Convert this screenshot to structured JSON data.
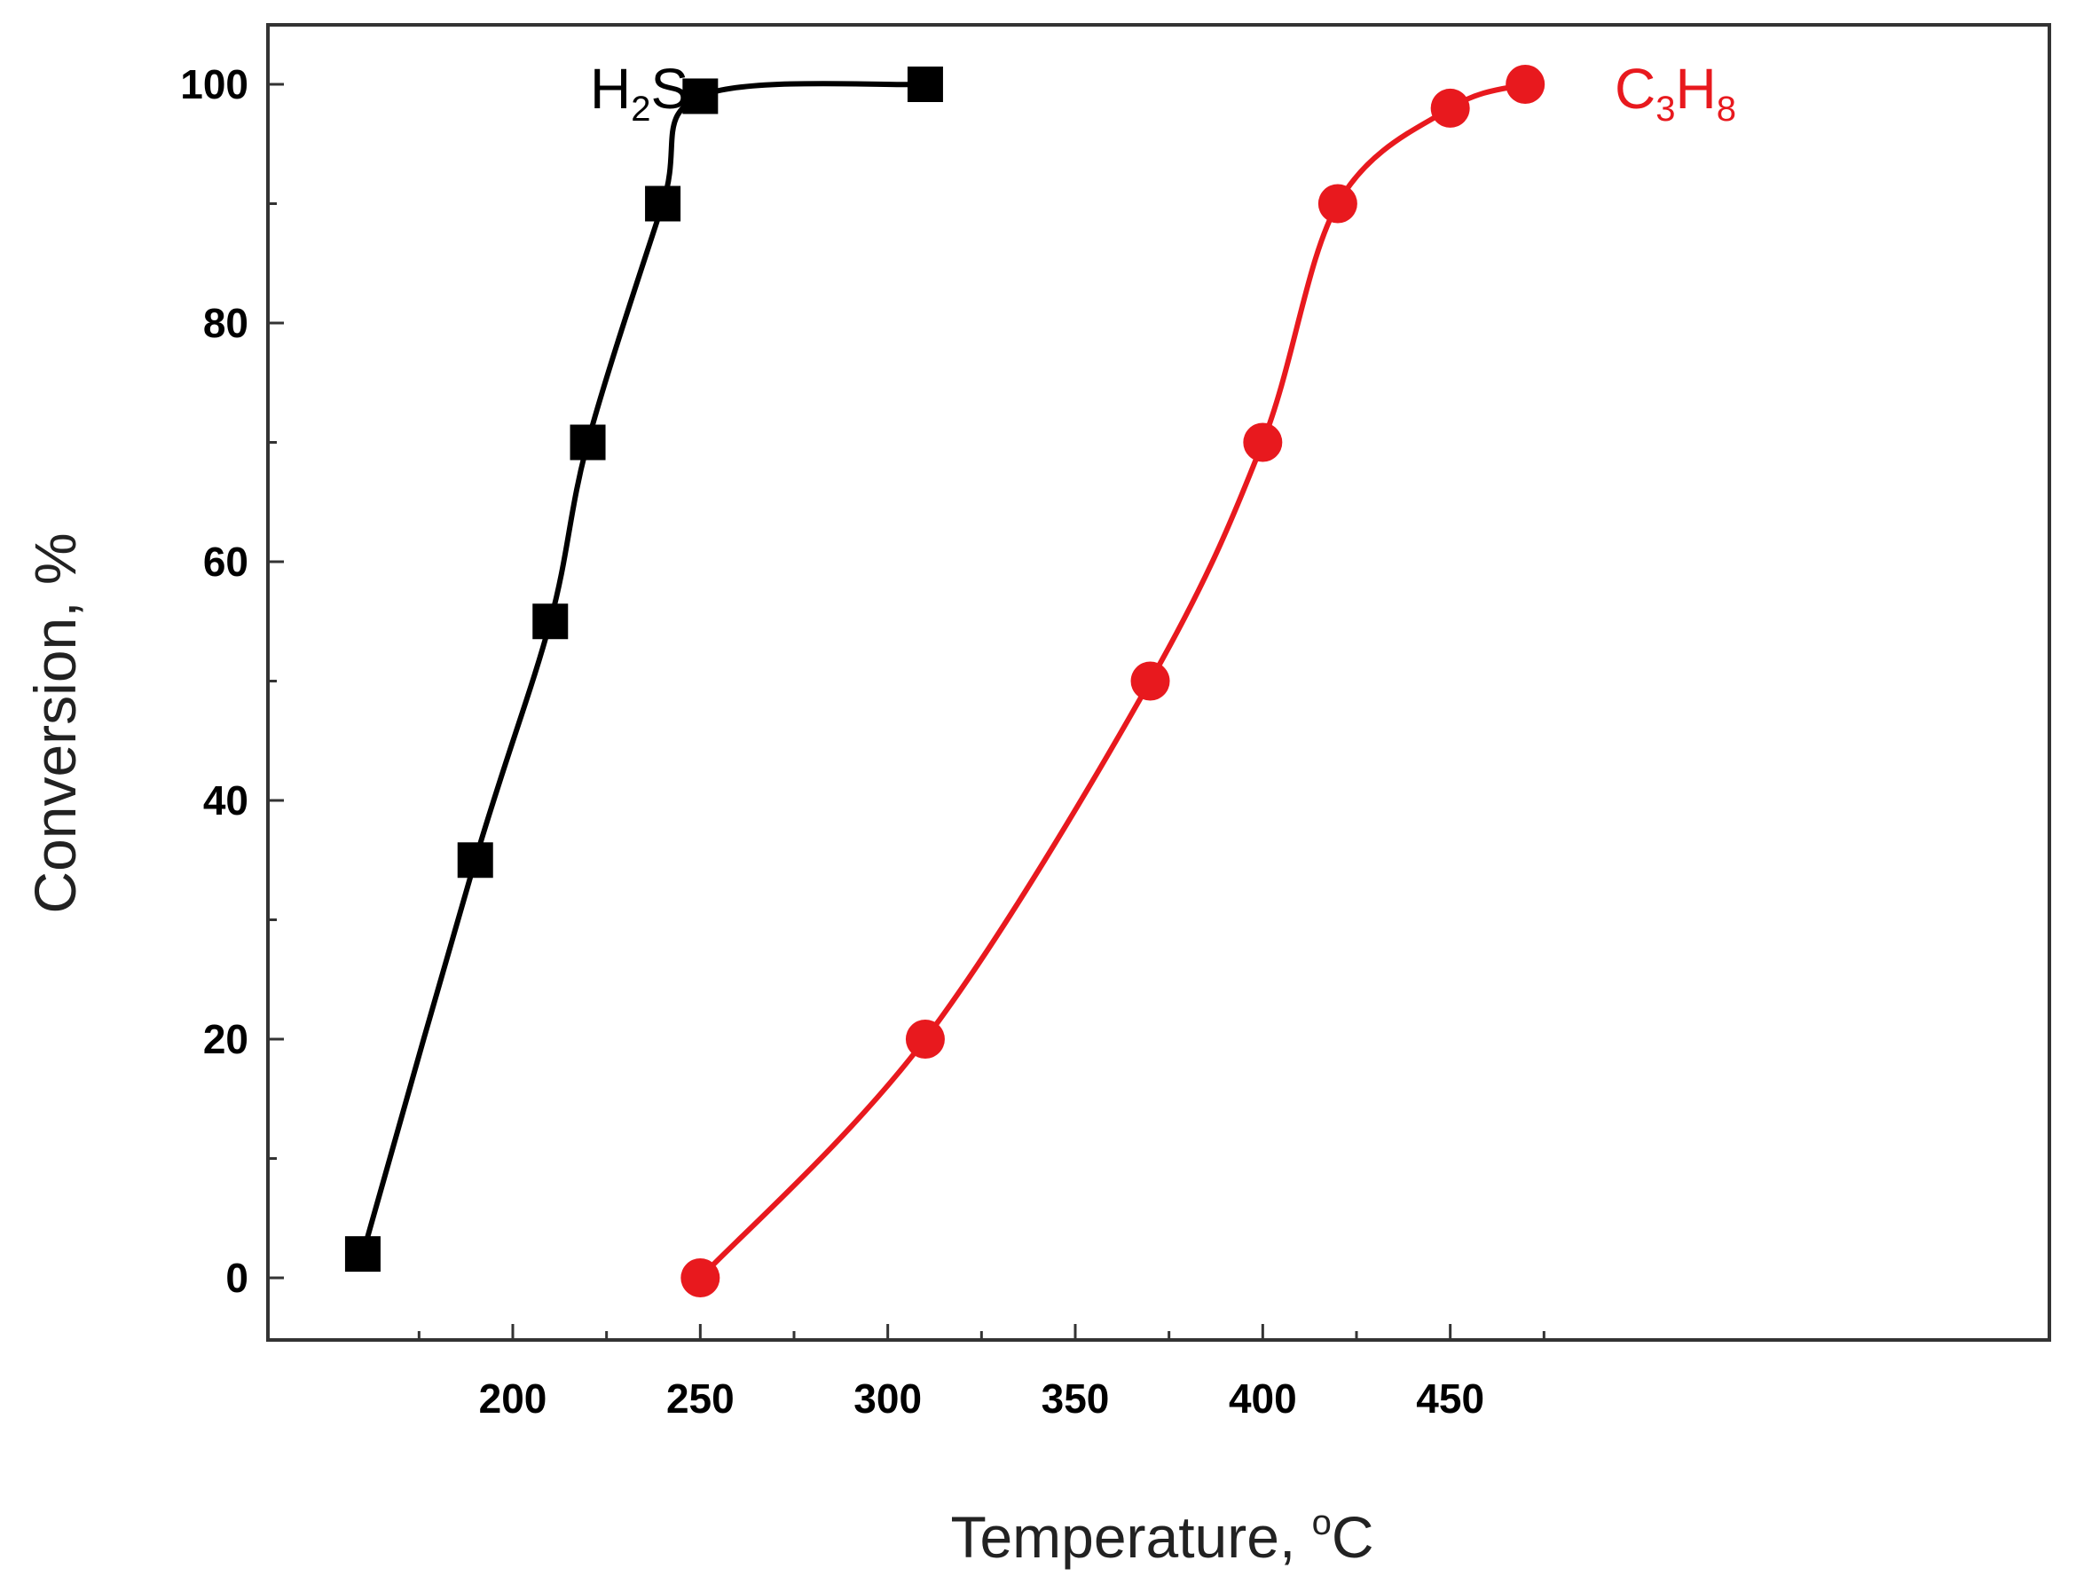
{
  "chart_data": {
    "type": "line",
    "xlabel": "Temperature, °C",
    "xlabel_parts": {
      "main": "Temperature, ",
      "sup": "o",
      "unit": "C"
    },
    "ylabel": "Conversion, %",
    "xlim": [
      155,
      475
    ],
    "ylim": [
      -5,
      105
    ],
    "x_ticks": [
      200,
      250,
      300,
      350,
      400,
      450
    ],
    "x_minor_ticks": [
      175,
      225,
      275,
      325,
      375,
      425,
      475
    ],
    "y_ticks": [
      0,
      20,
      40,
      60,
      80,
      100
    ],
    "y_minor_ticks": [
      10,
      30,
      50,
      70,
      90
    ],
    "grid": false,
    "legend": "inline labels",
    "series": [
      {
        "name": "H2S",
        "label_parts": {
          "a": "H",
          "sub": "2",
          "b": "S",
          "sub2": "",
          "c": ""
        },
        "marker": "square",
        "color": "#000000",
        "x": [
          160,
          190,
          210,
          220,
          240,
          250,
          310
        ],
        "y": [
          2,
          35,
          55,
          70,
          90,
          99,
          100
        ]
      },
      {
        "name": "C3H8",
        "label_parts": {
          "a": "C",
          "sub": "3",
          "b": "H",
          "sub2": "8",
          "c": ""
        },
        "marker": "circle",
        "color": "#e8191e",
        "x": [
          250,
          310,
          370,
          400,
          420,
          450,
          470
        ],
        "y": [
          0,
          20,
          50,
          70,
          90,
          98,
          100
        ]
      }
    ]
  }
}
